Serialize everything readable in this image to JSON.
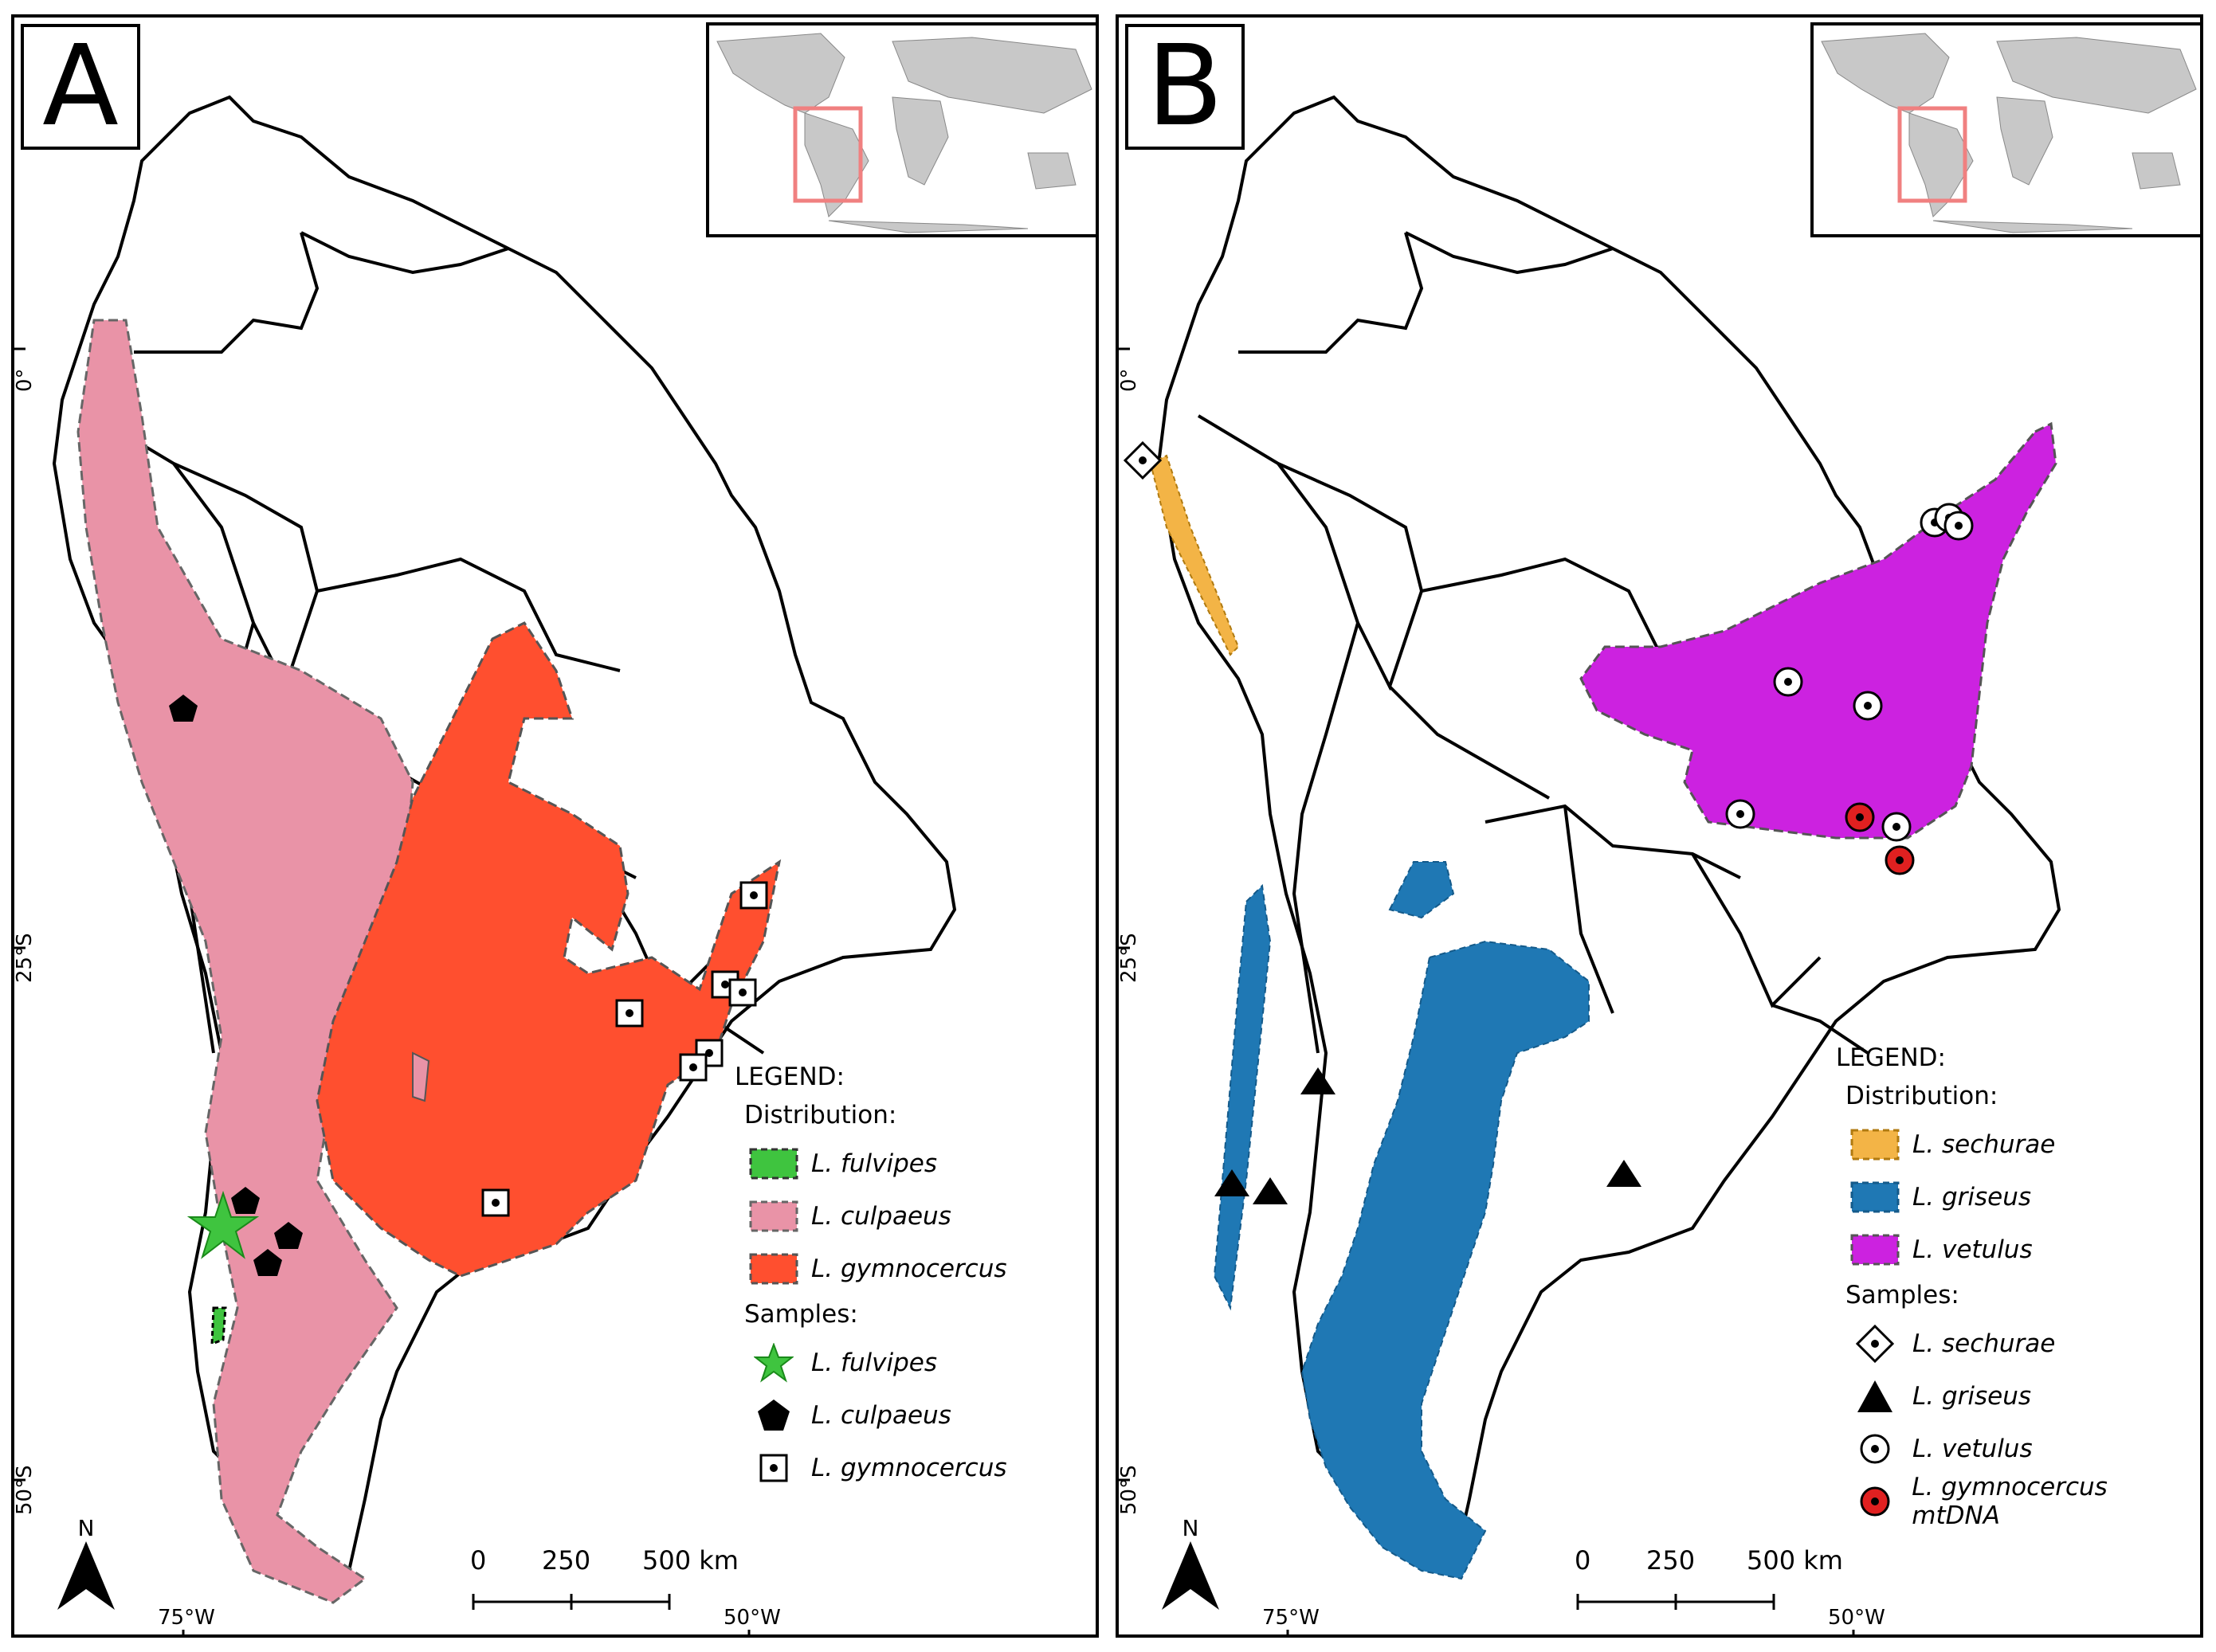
{
  "panel_a": {
    "label": "A",
    "lat_labels": [
      "0°",
      "25°S",
      "50°S"
    ],
    "lon_labels": [
      "75°W",
      "50°W"
    ],
    "north_label": "N",
    "scale": {
      "ticks": [
        "0",
        "250",
        "500 km"
      ]
    },
    "legend": {
      "title": "LEGEND:",
      "distribution_heading": "Distribution:",
      "distribution": [
        {
          "label": "L. fulvipes",
          "color": "#3fc43f"
        },
        {
          "label": "L. culpaeus",
          "color": "#e993a7"
        },
        {
          "label": "L. gymnocercus",
          "color": "#ff4f2f"
        }
      ],
      "samples_heading": "Samples:",
      "samples": [
        {
          "label": "L. fulvipes",
          "icon": "star-icon"
        },
        {
          "label": "L. culpaeus",
          "icon": "pentagon-icon"
        },
        {
          "label": "L. gymnocercus",
          "icon": "dotted-square-icon"
        }
      ]
    }
  },
  "panel_b": {
    "label": "B",
    "lat_labels": [
      "0°",
      "25°S",
      "50°S"
    ],
    "lon_labels": [
      "75°W",
      "50°W"
    ],
    "north_label": "N",
    "scale": {
      "ticks": [
        "0",
        "250",
        "500 km"
      ]
    },
    "legend": {
      "title": "LEGEND:",
      "distribution_heading": "Distribution:",
      "distribution": [
        {
          "label": "L. sechurae",
          "color": "#f3b446"
        },
        {
          "label": "L. griseus",
          "color": "#1f78b4"
        },
        {
          "label": "L. vetulus",
          "color": "#cc22e0"
        }
      ],
      "samples_heading": "Samples:",
      "samples": [
        {
          "label": "L. sechurae",
          "icon": "dotted-diamond-icon"
        },
        {
          "label": "L. griseus",
          "icon": "triangle-icon"
        },
        {
          "label": "L. vetulus",
          "icon": "dotted-circle-icon"
        },
        {
          "label": "L. gymnocercus mtDNA",
          "icon": "red-dotted-circle-icon"
        }
      ]
    }
  },
  "colors": {
    "inset_land": "#c8c8c8",
    "inset_highlight": "#f08080"
  }
}
